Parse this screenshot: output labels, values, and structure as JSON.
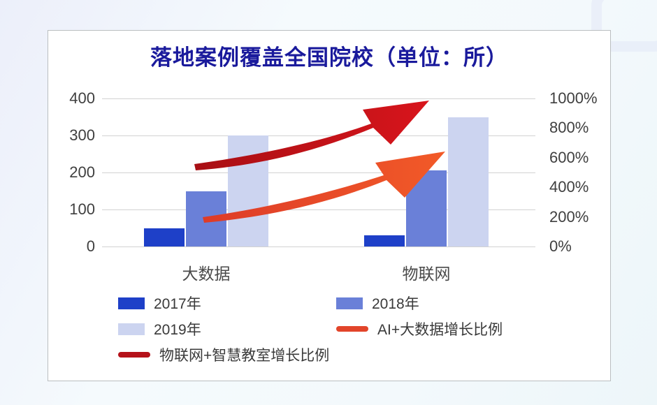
{
  "chart_data": {
    "type": "bar",
    "title": "落地案例覆盖全国院校（单位：所）",
    "categories": [
      "大数据",
      "物联网"
    ],
    "series": [
      {
        "name": "2017年",
        "color": "#1e40c8",
        "values": [
          50,
          30
        ]
      },
      {
        "name": "2018年",
        "color": "#6a80d8",
        "values": [
          150,
          205
        ]
      },
      {
        "name": "2019年",
        "color": "#ccd4f0",
        "values": [
          300,
          350
        ]
      }
    ],
    "left_axis": {
      "ticks_top_to_bottom": [
        "400",
        "300",
        "200",
        "100",
        "0"
      ],
      "ylim": [
        0,
        400
      ]
    },
    "right_axis": {
      "ticks_top_to_bottom": [
        "1000%",
        "800%",
        "600%",
        "400%",
        "200%",
        "0%"
      ],
      "ylim_percent": [
        0,
        1000
      ]
    },
    "growth_lines": [
      {
        "name": "AI+大数据增长比例",
        "color": "#e2452a",
        "style": "orange rising swoosh arrow"
      },
      {
        "name": "物联网+智慧教室增长比例",
        "color": "#b5121a",
        "style": "dark red rising swoosh arrow"
      }
    ],
    "grid": true,
    "legend_position": "bottom"
  },
  "legend": {
    "items": [
      {
        "label": "2017年",
        "swatch": "bar",
        "color": "#1e40c8"
      },
      {
        "label": "2018年",
        "swatch": "bar",
        "color": "#6a80d8"
      },
      {
        "label": "2019年",
        "swatch": "bar",
        "color": "#ccd4f0"
      },
      {
        "label": "AI+大数据增长比例",
        "swatch": "line",
        "color": "#e2452a"
      },
      {
        "label": "物联网+智慧教室增长比例",
        "swatch": "line",
        "color": "#b5121a"
      }
    ]
  },
  "style": {
    "title_color": "#1a1a9c",
    "axis_text_color": "#3f3f3f",
    "gridline_color": "#d2d2d2",
    "card_border_color": "#babec0",
    "card_background": "#ffffff"
  }
}
